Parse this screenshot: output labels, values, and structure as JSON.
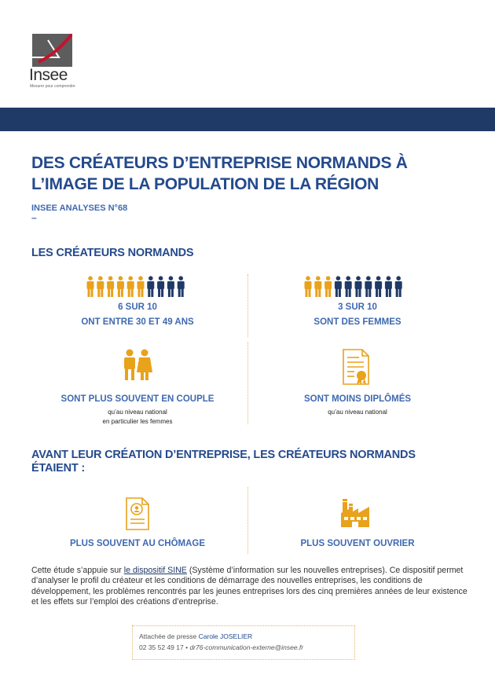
{
  "logo": {
    "name": "Insee",
    "tagline": "Mesurer pour comprendre"
  },
  "header": {
    "title": "DES CRÉATEURS D’ENTREPRISE NORMANDS À L’IMAGE DE LA POPULATION DE LA RÉGION",
    "subtitle": "INSEE ANALYSES N°68",
    "dash": "–"
  },
  "colors": {
    "navy": "#1f3a67",
    "blue": "#3f69b0",
    "orange": "#e8a21c"
  },
  "section1": {
    "title": "LES CRÉATEURS NORMANDS",
    "stats": [
      {
        "highlighted": 6,
        "total": 10,
        "value": "6 SUR 10",
        "label": "ONT ENTRE 30 ET 49 ANS",
        "icon": "people-icon"
      },
      {
        "highlighted": 3,
        "total": 10,
        "value": "3 SUR 10",
        "label": "SONT DES FEMMES",
        "icon": "people-icon"
      },
      {
        "label": "SONT PLUS SOUVENT EN COUPLE",
        "note1": "qu’au niveau national",
        "note2": "en particulier les femmes",
        "icon": "couple-icon"
      },
      {
        "label": "SONT MOINS DIPLÔMÉS",
        "note1": "qu’au niveau national",
        "icon": "diploma-icon"
      }
    ]
  },
  "section2": {
    "title_line1": "AVANT LEUR CRÉATION D’ENTREPRISE, LES CRÉATEURS NORMANDS",
    "title_line2": "ÉTAIENT :",
    "items": [
      {
        "label": "PLUS SOUVENT AU CHÔMAGE",
        "icon": "resume-icon"
      },
      {
        "label": "PLUS SOUVENT OUVRIER",
        "icon": "factory-icon"
      }
    ]
  },
  "study": {
    "part1": "Cette étude s’appuie sur ",
    "link": "le dispositif SINE",
    "part2": " (Système d’information sur les nouvelles entreprises). Ce dispositif permet d’analyser le profil du créateur et les conditions de démarrage des nouvelles entreprises, les conditions de développement, les problèmes rencontrés par les jeunes entreprises lors des cinq premières années de leur existence et les effets sur l’emploi des créations d’entreprise."
  },
  "contact": {
    "role": "Attachée de presse",
    "name": "Carole JOSELIER",
    "phone": "02 35 52 49 17",
    "separator": " • ",
    "email": "dr76-communication-externe@insee.fr"
  }
}
